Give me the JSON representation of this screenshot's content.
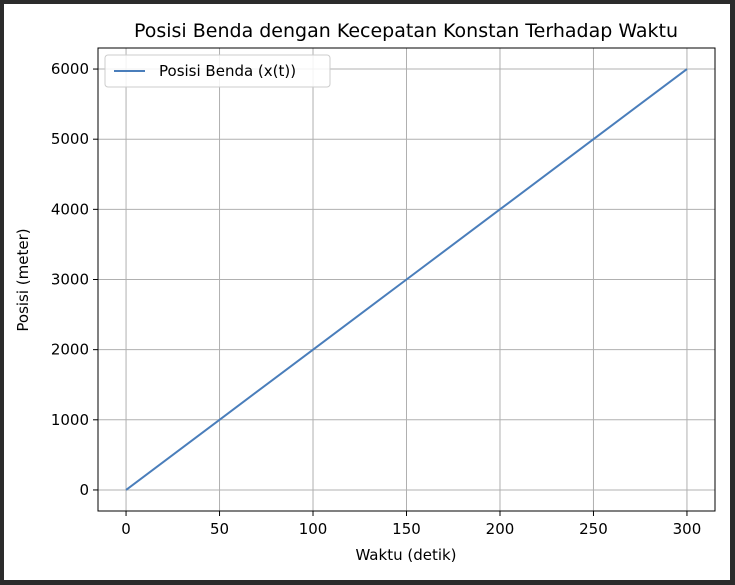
{
  "chart_data": {
    "type": "line",
    "title": "Posisi Benda dengan Kecepatan Konstan Terhadap Waktu",
    "xlabel": "Waktu (detik)",
    "ylabel": "Posisi (meter)",
    "xlim": [
      -15,
      315
    ],
    "ylim": [
      -300,
      6300
    ],
    "xticks": [
      0,
      50,
      100,
      150,
      200,
      250,
      300
    ],
    "xtick_labels": [
      "0",
      "50",
      "100",
      "150",
      "200",
      "250",
      "300"
    ],
    "yticks": [
      0,
      1000,
      2000,
      3000,
      4000,
      5000,
      6000
    ],
    "ytick_labels": [
      "0",
      "1000",
      "2000",
      "3000",
      "4000",
      "5000",
      "6000"
    ],
    "grid": true,
    "legend_position": "top-left",
    "series": [
      {
        "name": "Posisi Benda (x(t))",
        "color": "#4a7ebb",
        "x": [
          0,
          50,
          100,
          150,
          200,
          250,
          300
        ],
        "y": [
          0,
          1000,
          2000,
          3000,
          4000,
          5000,
          6000
        ]
      }
    ]
  }
}
